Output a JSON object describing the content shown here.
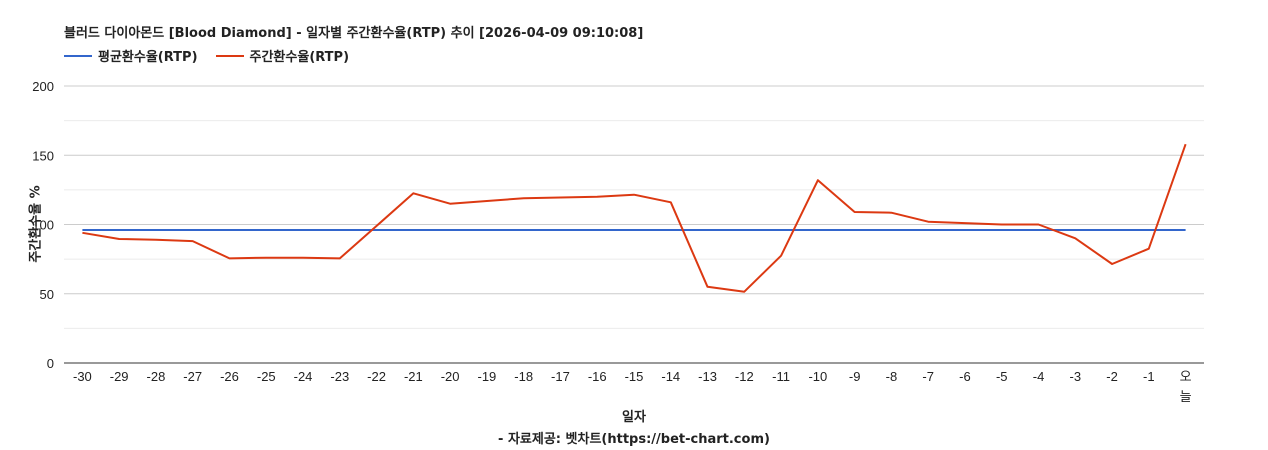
{
  "title": "블러드 다이아몬드 [Blood Diamond] - 일자별 주간환수율(RTP) 추이 [2026-04-09 09:10:08]",
  "legend": [
    {
      "label": "평균환수율(RTP)",
      "color": "#3366cc"
    },
    {
      "label": "주간환수율(RTP)",
      "color": "#dc3912"
    }
  ],
  "xlabel": "일자",
  "ylabel": "주간환수율 %",
  "source": "- 자료제공: 벳차트(https://bet-chart.com)",
  "chart_data": {
    "type": "line",
    "title": "블러드 다이아몬드 [Blood Diamond] - 일자별 주간환수율(RTP) 추이 [2026-04-09 09:10:08]",
    "xlabel": "일자",
    "ylabel": "주간환수율 %",
    "ylim": [
      0,
      200
    ],
    "yticks": [
      0,
      50,
      100,
      150,
      200
    ],
    "grid": true,
    "legend_position": "top",
    "categories": [
      "-30",
      "-29",
      "-28",
      "-27",
      "-26",
      "-25",
      "-24",
      "-23",
      "-22",
      "-21",
      "-20",
      "-19",
      "-18",
      "-17",
      "-16",
      "-15",
      "-14",
      "-13",
      "-12",
      "-11",
      "-10",
      "-9",
      "-8",
      "-7",
      "-6",
      "-5",
      "-4",
      "-3",
      "-2",
      "-1",
      "오늘"
    ],
    "series": [
      {
        "name": "평균환수율(RTP)",
        "color": "#3366cc",
        "values": [
          96,
          96,
          96,
          96,
          96,
          96,
          96,
          96,
          96,
          96,
          96,
          96,
          96,
          96,
          96,
          96,
          96,
          96,
          96,
          96,
          96,
          96,
          96,
          96,
          96,
          96,
          96,
          96,
          96,
          96,
          96
        ]
      },
      {
        "name": "주간환수율(RTP)",
        "color": "#dc3912",
        "values": [
          94,
          89.5,
          89,
          88,
          75.5,
          76,
          76,
          75.5,
          99,
          122.5,
          115,
          117,
          119,
          119.5,
          120,
          121.5,
          116,
          55,
          51.5,
          77.5,
          132,
          109,
          108.5,
          102,
          101,
          100,
          100,
          90,
          71.5,
          82.5,
          158
        ]
      }
    ]
  }
}
